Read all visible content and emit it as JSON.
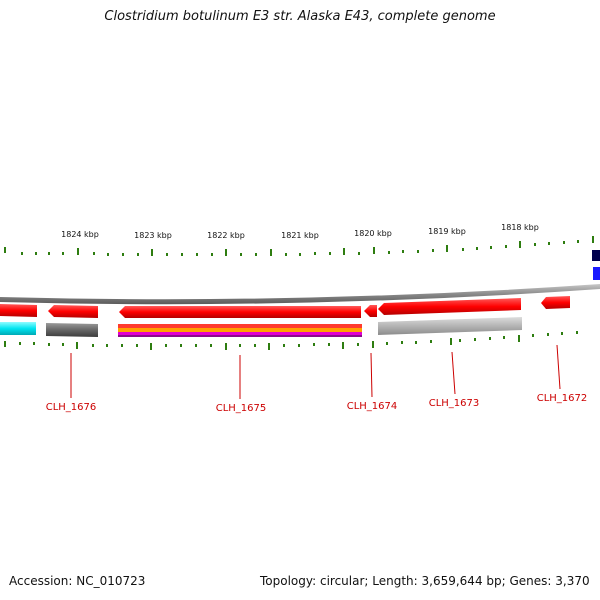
{
  "title": "Clostridium botulinum E3 str. Alaska E43, complete genome",
  "scale_labels": [
    "1824 kbp",
    "1823 kbp",
    "1822 kbp",
    "1821 kbp",
    "1820 kbp",
    "1819 kbp",
    "1818 kbp"
  ],
  "gene_labels": [
    "CLH_1676",
    "CLH_1675",
    "CLH_1674",
    "CLH_1673",
    "CLH_1672"
  ],
  "footer": {
    "accession": "Accession: NC_010723",
    "topology": "Topology: circular; Length: 3,659,644 bp; Genes: 3,370"
  },
  "colors": {
    "cds": "#ff0000",
    "tick": "#2e7d10",
    "label": "#cc0000",
    "backbone": "#888888"
  }
}
